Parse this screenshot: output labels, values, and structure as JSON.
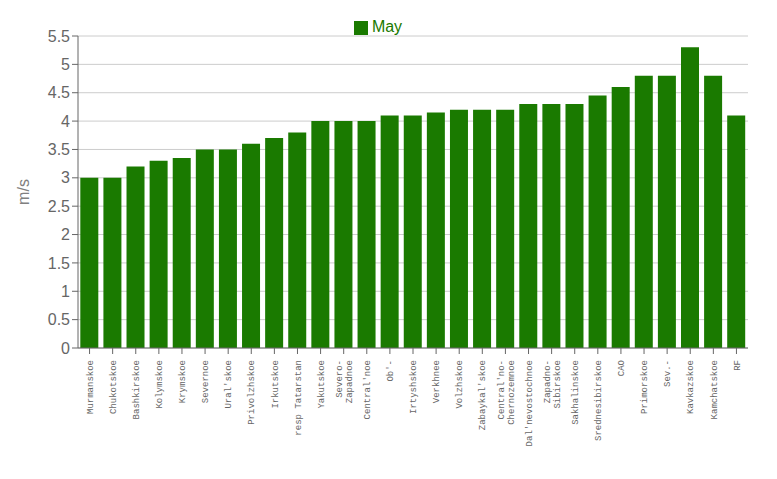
{
  "chart_data": {
    "type": "bar",
    "ylabel": "m/s",
    "categories": [
      "Murmanskoe",
      "Chukotskoe",
      "Bashkirskoe",
      "Kolymskoe",
      "Krymskoe",
      "Severnoe",
      "Ural'skoe",
      "Privolzhskoe",
      "Irkutskoe",
      "resp Tatarstan",
      "Yakutskoe",
      "Severo-\nZapadnoe",
      "Central'noe",
      "Ob'-",
      "Irtyshskoe",
      "Verkhnee",
      "Volzhskoe",
      "Zabaykal'skoe",
      "Central'no-\nChernozemnoe",
      "Dal'nevostochnoe",
      "Zapadno-\nSibirskoe",
      "Sakhalinskoe",
      "Srednesibirskoe",
      "CAO",
      "Primorskoe",
      "Sev.-",
      "Kavkazskoe",
      "Kamchatskoe",
      "RF"
    ],
    "series": [
      {
        "name": "May",
        "color": "#1a7a00",
        "values": [
          3.0,
          3.0,
          3.2,
          3.3,
          3.35,
          3.5,
          3.5,
          3.6,
          3.7,
          3.8,
          4.0,
          4.0,
          4.0,
          4.1,
          4.1,
          4.15,
          4.2,
          4.2,
          4.2,
          4.3,
          4.3,
          4.3,
          4.45,
          4.6,
          4.8,
          4.8,
          5.3,
          4.8,
          4.1
        ]
      }
    ],
    "ylim": [
      0,
      5.5
    ],
    "yticks": [
      0,
      0.5,
      1,
      1.5,
      2,
      2.5,
      3,
      3.5,
      4,
      4.5,
      5,
      5.5
    ],
    "grid": true,
    "legend": "top"
  }
}
